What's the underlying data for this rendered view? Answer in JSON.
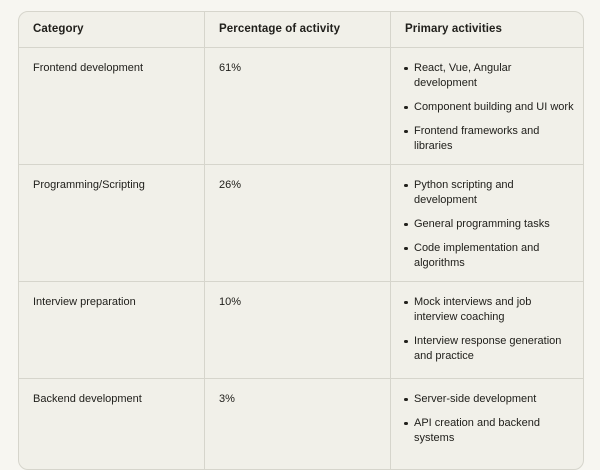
{
  "chart_data": {
    "type": "table",
    "columns": [
      "Category",
      "Percentage of activity",
      "Primary activities"
    ],
    "rows": [
      {
        "category": "Frontend development",
        "percentage": "61%",
        "percentage_value": 61,
        "activities": [
          "React, Vue, Angular development",
          "Component building and UI work",
          "Frontend frameworks and libraries"
        ]
      },
      {
        "category": "Programming/Scripting",
        "percentage": "26%",
        "percentage_value": 26,
        "activities": [
          "Python scripting and development",
          "General programming tasks",
          "Code implementation and algorithms"
        ]
      },
      {
        "category": "Interview preparation",
        "percentage": "10%",
        "percentage_value": 10,
        "activities": [
          "Mock interviews and job interview coaching",
          "Interview response generation and practice"
        ]
      },
      {
        "category": "Backend development",
        "percentage": "3%",
        "percentage_value": 3,
        "activities": [
          "Server-side development",
          "API creation and backend systems"
        ]
      }
    ]
  },
  "colors": {
    "page_bg": "#f7f6f1",
    "table_bg": "#f1f0e9",
    "border": "#d6d5cc",
    "text": "#21201c"
  }
}
